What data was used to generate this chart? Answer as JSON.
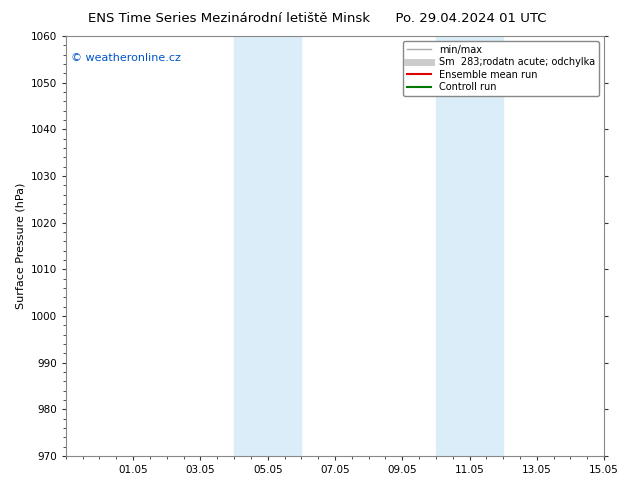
{
  "title_left": "ENS Time Series Mezinárodní letiště Minsk",
  "title_right": "Po. 29.04.2024 01 UTC",
  "ylabel": "Surface Pressure (hPa)",
  "ylim": [
    970,
    1060
  ],
  "yticks": [
    970,
    980,
    990,
    1000,
    1010,
    1020,
    1030,
    1040,
    1050,
    1060
  ],
  "xlim": [
    0,
    16
  ],
  "xtick_labels": [
    "01.05",
    "03.05",
    "05.05",
    "07.05",
    "09.05",
    "11.05",
    "13.05",
    "15.05"
  ],
  "xtick_positions": [
    2,
    4,
    6,
    8,
    10,
    12,
    14,
    16
  ],
  "watermark": "© weatheronline.cz",
  "watermark_color": "#0055cc",
  "background_color": "#ffffff",
  "plot_bg_color": "#ffffff",
  "shaded_bands": [
    {
      "x_start": 5.0,
      "x_end": 7.0,
      "color": "#daedf8"
    },
    {
      "x_start": 11.0,
      "x_end": 13.0,
      "color": "#daedf8"
    }
  ],
  "legend_entries": [
    {
      "label": "min/max",
      "color": "#aaaaaa",
      "linestyle": "-",
      "linewidth": 1.0
    },
    {
      "label": "Sm  283;rodatn acute; odchylka",
      "color": "#cccccc",
      "linestyle": "-",
      "linewidth": 5.0
    },
    {
      "label": "Ensemble mean run",
      "color": "#dd0000",
      "linestyle": "-",
      "linewidth": 1.5
    },
    {
      "label": "Controll run",
      "color": "#007700",
      "linestyle": "-",
      "linewidth": 1.5
    }
  ],
  "title_fontsize": 9.5,
  "tick_fontsize": 7.5,
  "ylabel_fontsize": 8,
  "legend_fontsize": 7,
  "watermark_fontsize": 8,
  "spine_color": "#888888",
  "tick_color": "#333333"
}
